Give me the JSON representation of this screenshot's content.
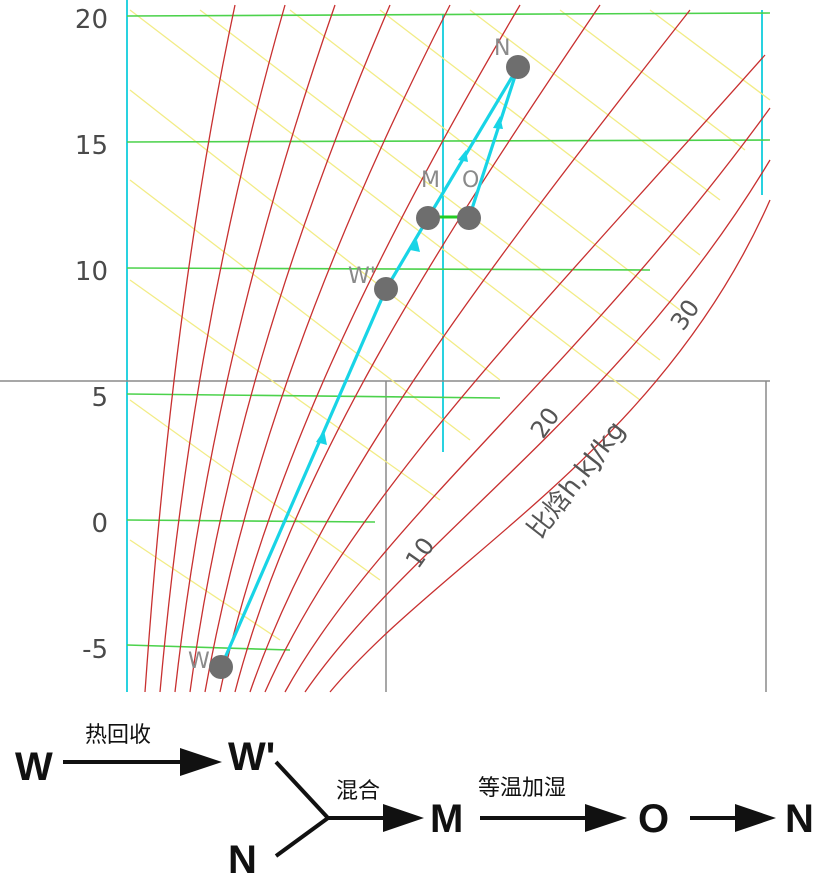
{
  "chart": {
    "y_ticks": [
      "20",
      "15",
      "10",
      "5",
      "0",
      "-5"
    ],
    "enthalpy_ticks": [
      "10",
      "20",
      "30"
    ],
    "enthalpy_axis_label": "比焓h,kJ/kg"
  },
  "points": {
    "N": "N",
    "M": "M",
    "O": "O",
    "W_prime": "W'",
    "W": "W"
  },
  "flow": {
    "nodes": {
      "W": "W",
      "W_prime": "W'",
      "N": "N",
      "M": "M",
      "O": "O",
      "N_end": "N"
    },
    "steps": {
      "heat_recovery": "热回收",
      "mixing": "混合",
      "isothermal_humidification": "等温加湿"
    }
  }
}
